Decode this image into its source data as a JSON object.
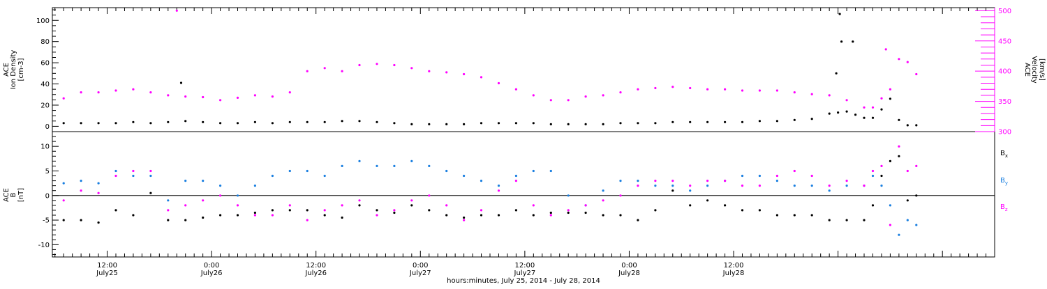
{
  "chart_data": [
    {
      "type": "scatter",
      "title": "",
      "ylabel_lines": [
        "ACE",
        "Ion Density",
        "[cm-3]"
      ],
      "ylim": [
        -5,
        112
      ],
      "yticks": [
        0,
        20,
        40,
        60,
        80,
        100
      ],
      "y2label_lines": [
        "ACE",
        "Velocity",
        "[km/s]"
      ],
      "y2lim": [
        300,
        505
      ],
      "y2ticks": [
        300,
        350,
        400,
        450,
        500
      ],
      "series": [
        {
          "name": "",
          "axis": "left",
          "color": "#000000",
          "x": [
            7,
            9,
            11,
            13,
            15,
            17,
            19,
            21,
            23,
            25,
            27,
            29,
            31,
            33,
            35,
            37,
            39,
            41,
            43,
            45,
            47,
            49,
            51,
            53,
            55,
            57,
            59,
            61,
            63,
            65,
            67,
            69,
            71,
            73,
            75,
            77,
            79,
            81,
            83,
            85,
            87,
            89,
            91,
            93,
            95,
            96,
            97,
            98,
            99,
            100,
            101,
            102,
            103,
            104,
            105
          ],
          "y": [
            3,
            3,
            3,
            3,
            4,
            3,
            4,
            5,
            4,
            3,
            3,
            4,
            3,
            4,
            4,
            4,
            5,
            5,
            4,
            3,
            2,
            2,
            2,
            2,
            3,
            3,
            3,
            3,
            2,
            2,
            2,
            2,
            3,
            3,
            3,
            4,
            4,
            4,
            4,
            4,
            5,
            5,
            6,
            7,
            12,
            13,
            14,
            11,
            8,
            8,
            16,
            26,
            6,
            1,
            1
          ]
        },
        {
          "name": "",
          "axis": "left",
          "color": "#000000",
          "x": [
            20.5,
            96.2,
            96.4,
            97.7,
            95.8
          ],
          "y": [
            41,
            106,
            80,
            80,
            50
          ]
        },
        {
          "name": "",
          "axis": "right",
          "color": "#ff00ff",
          "x": [
            7,
            9,
            11,
            13,
            15,
            17,
            19,
            21,
            23,
            25,
            27,
            29,
            31,
            33,
            35,
            37,
            39,
            41,
            43,
            45,
            47,
            49,
            51,
            53,
            55,
            57,
            59,
            61,
            63,
            65,
            67,
            69,
            71,
            73,
            75,
            77,
            79,
            81,
            83,
            85,
            87,
            89,
            91,
            93,
            95,
            97,
            99,
            100,
            101,
            102,
            103,
            104,
            105
          ],
          "y": [
            355,
            365,
            365,
            368,
            370,
            365,
            360,
            358,
            357,
            352,
            356,
            360,
            358,
            365,
            400,
            405,
            400,
            410,
            412,
            410,
            405,
            400,
            398,
            395,
            390,
            380,
            370,
            360,
            352,
            352,
            358,
            360,
            365,
            370,
            372,
            374,
            372,
            370,
            370,
            368,
            368,
            368,
            365,
            362,
            360,
            352,
            340,
            340,
            355,
            370,
            420,
            415,
            395
          ]
        },
        {
          "name": "",
          "axis": "right",
          "color": "#ff00ff",
          "x": [
            20,
            101.5
          ],
          "y": [
            500,
            436
          ]
        }
      ]
    },
    {
      "type": "scatter",
      "title": "",
      "ylabel_lines": [
        "ACE",
        "B",
        "[nT]"
      ],
      "ylim": [
        -12.5,
        13
      ],
      "yticks": [
        -10,
        -5,
        0,
        5,
        10
      ],
      "series": [
        {
          "name": "Bx",
          "color": "#000000",
          "x": [
            7,
            9,
            11,
            13,
            15,
            17,
            19,
            21,
            23,
            25,
            27,
            29,
            31,
            33,
            35,
            37,
            39,
            41,
            43,
            45,
            47,
            49,
            51,
            53,
            55,
            57,
            59,
            61,
            63,
            65,
            67,
            69,
            71,
            73,
            75,
            77,
            79,
            81,
            83,
            85,
            87,
            89,
            91,
            93,
            95,
            97,
            99,
            100,
            101,
            102,
            103,
            104,
            105
          ],
          "y": [
            -5,
            -5,
            -5.5,
            -3,
            -4,
            0.5,
            -5,
            -5,
            -4.5,
            -4,
            -4,
            -3.5,
            -3,
            -3,
            -3,
            -4,
            -4.5,
            -2,
            -3,
            -3.5,
            -2,
            -3,
            -4,
            -4.5,
            -4,
            -4,
            -3,
            -4,
            -3.5,
            -3.5,
            -3.5,
            -4,
            -4,
            -5,
            -3,
            1,
            -2,
            -1,
            -2,
            -3,
            -3,
            -4,
            -4,
            -4,
            -5,
            -5,
            -5,
            -2,
            4,
            7,
            8,
            -1,
            0
          ]
        },
        {
          "name": "By",
          "color": "#1a7fe0",
          "x": [
            7,
            9,
            11,
            13,
            15,
            17,
            19,
            21,
            23,
            25,
            27,
            29,
            31,
            33,
            35,
            37,
            39,
            41,
            43,
            45,
            47,
            49,
            51,
            53,
            55,
            57,
            59,
            61,
            63,
            65,
            67,
            69,
            71,
            73,
            75,
            77,
            79,
            81,
            83,
            85,
            87,
            89,
            91,
            93,
            95,
            97,
            99,
            100,
            101,
            102,
            103,
            104,
            105
          ],
          "y": [
            2.5,
            3,
            2.5,
            5,
            4,
            4,
            -1,
            3,
            3,
            2,
            0,
            2,
            4,
            5,
            5,
            4,
            6,
            7,
            6,
            6,
            7,
            6,
            5,
            4,
            3,
            2,
            4,
            5,
            5,
            0,
            -2,
            1,
            3,
            3,
            2,
            2,
            1,
            2,
            3,
            4,
            4,
            3,
            2,
            2,
            1,
            2,
            2,
            4,
            2,
            -2,
            -8,
            -5,
            -6
          ]
        },
        {
          "name": "Bz",
          "color": "#ff00ff",
          "x": [
            7,
            9,
            11,
            13,
            15,
            17,
            19,
            21,
            23,
            25,
            27,
            29,
            31,
            33,
            35,
            37,
            39,
            41,
            43,
            45,
            47,
            49,
            51,
            53,
            55,
            57,
            59,
            61,
            63,
            65,
            67,
            69,
            71,
            73,
            75,
            77,
            79,
            81,
            83,
            85,
            87,
            89,
            91,
            93,
            95,
            97,
            99,
            100,
            101,
            102,
            103,
            104,
            105
          ],
          "y": [
            -1,
            1,
            0.5,
            4,
            5,
            5,
            -3,
            -2,
            -1,
            0,
            -2,
            -4,
            -4,
            -2,
            -5,
            -3,
            -2,
            -1,
            -4,
            -3,
            -1,
            0,
            -2,
            -5,
            -3,
            1,
            3,
            -2,
            -4,
            -3,
            -2,
            -1,
            0,
            2,
            3,
            3,
            2,
            3,
            3,
            2,
            2,
            4,
            5,
            4,
            2,
            3,
            2,
            5,
            6,
            -6,
            10,
            5,
            6
          ]
        }
      ],
      "legend_placement": "right"
    }
  ],
  "legend": {
    "bx": {
      "main": "B",
      "sub": "x"
    },
    "by": {
      "main": "B",
      "sub": "y"
    },
    "bz": {
      "main": "B",
      "sub": "z"
    }
  },
  "x_axis": {
    "range": [
      5.7,
      114
    ],
    "major_ticks": [
      12,
      24,
      36,
      48,
      60,
      72,
      84,
      96,
      108
    ],
    "minor_step": 1,
    "tick_labels": [
      {
        "time": "12:00",
        "date": "July25"
      },
      {
        "time": "0:00",
        "date": "July26"
      },
      {
        "time": "12:00",
        "date": "July26"
      },
      {
        "time": "0:00",
        "date": "July27"
      },
      {
        "time": "12:00",
        "date": "July27"
      },
      {
        "time": "0:00",
        "date": "July28"
      },
      {
        "time": "12:00",
        "date": "July28"
      }
    ],
    "title": "hours:minutes, July 25, 2014 - July 28, 2014"
  },
  "colors": {
    "density": "#000000",
    "velocity": "#ff00ff",
    "bx": "#000000",
    "by": "#1a7fe0",
    "bz": "#ff00ff"
  }
}
